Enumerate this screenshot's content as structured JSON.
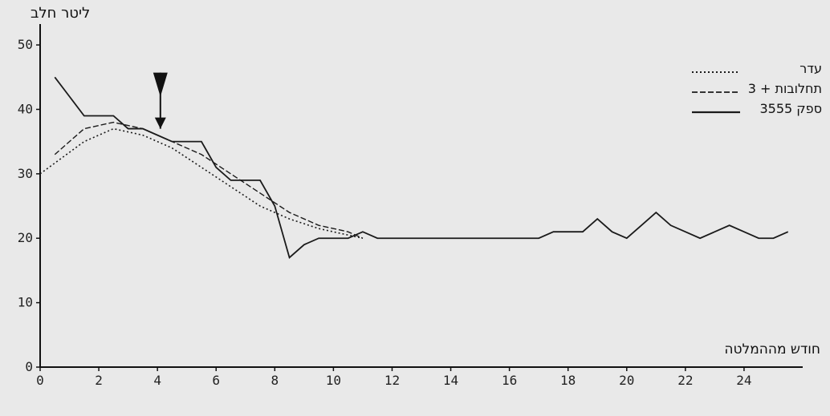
{
  "chart_data": {
    "type": "line",
    "ylabel": "ליטר חלב",
    "xlabel": "חודש מההמלטה",
    "xlim": [
      0,
      26
    ],
    "ylim": [
      0,
      52
    ],
    "x_ticks": [
      0,
      2,
      4,
      6,
      8,
      10,
      12,
      14,
      16,
      18,
      20,
      22,
      24
    ],
    "y_ticks": [
      0,
      10,
      20,
      30,
      40,
      50
    ],
    "legend": {
      "placement": "top-right",
      "header": "עדר",
      "items": [
        "תחלובות + 3",
        "ספק 3555"
      ]
    },
    "series": [
      {
        "name": "עדר",
        "style": "dotted",
        "x": [
          0,
          1.5,
          2.5,
          3.5,
          4.5,
          5.5,
          6.5,
          7.5,
          8.5,
          9.5,
          10.5,
          11
        ],
        "y": [
          30,
          35,
          37,
          36,
          34,
          31,
          28,
          25,
          23,
          21.5,
          20.5,
          20
        ]
      },
      {
        "name": "תחלובות + 3",
        "style": "dashed",
        "x": [
          0.5,
          1.5,
          2.5,
          3.5,
          4.5,
          5.5,
          6.5,
          7.5,
          8.5,
          9.5,
          10.5,
          11
        ],
        "y": [
          33,
          37,
          38,
          37,
          35,
          33,
          30,
          27,
          24,
          22,
          21,
          20
        ]
      },
      {
        "name": "ספק 3555",
        "style": "solid",
        "x": [
          0.5,
          1,
          1.5,
          2,
          2.5,
          3,
          3.5,
          4,
          4.5,
          5,
          5.5,
          6,
          6.5,
          7,
          7.5,
          8,
          8.5,
          9,
          9.5,
          10,
          10.5,
          11,
          11.5,
          12,
          12.5,
          13,
          13.5,
          14,
          14.5,
          15,
          15.5,
          16,
          16.5,
          17,
          17.5,
          18,
          18.5,
          19,
          19.5,
          20,
          20.5,
          21,
          21.5,
          22,
          22.5,
          23,
          23.5,
          24,
          24.5,
          25,
          25.5
        ],
        "y": [
          45,
          42,
          39,
          39,
          39,
          37,
          37,
          36,
          35,
          35,
          35,
          31,
          29,
          29,
          29,
          25,
          17,
          19,
          20,
          20,
          20,
          21,
          20,
          20,
          20,
          20,
          20,
          20,
          20,
          20,
          20,
          20,
          20,
          20,
          21,
          21,
          21,
          23,
          21,
          20,
          22,
          24,
          22,
          21,
          20,
          21,
          22,
          21,
          20,
          20,
          21
        ]
      }
    ],
    "annotations": [
      {
        "type": "arrow-down",
        "x": 4.1,
        "y": 37
      }
    ]
  }
}
